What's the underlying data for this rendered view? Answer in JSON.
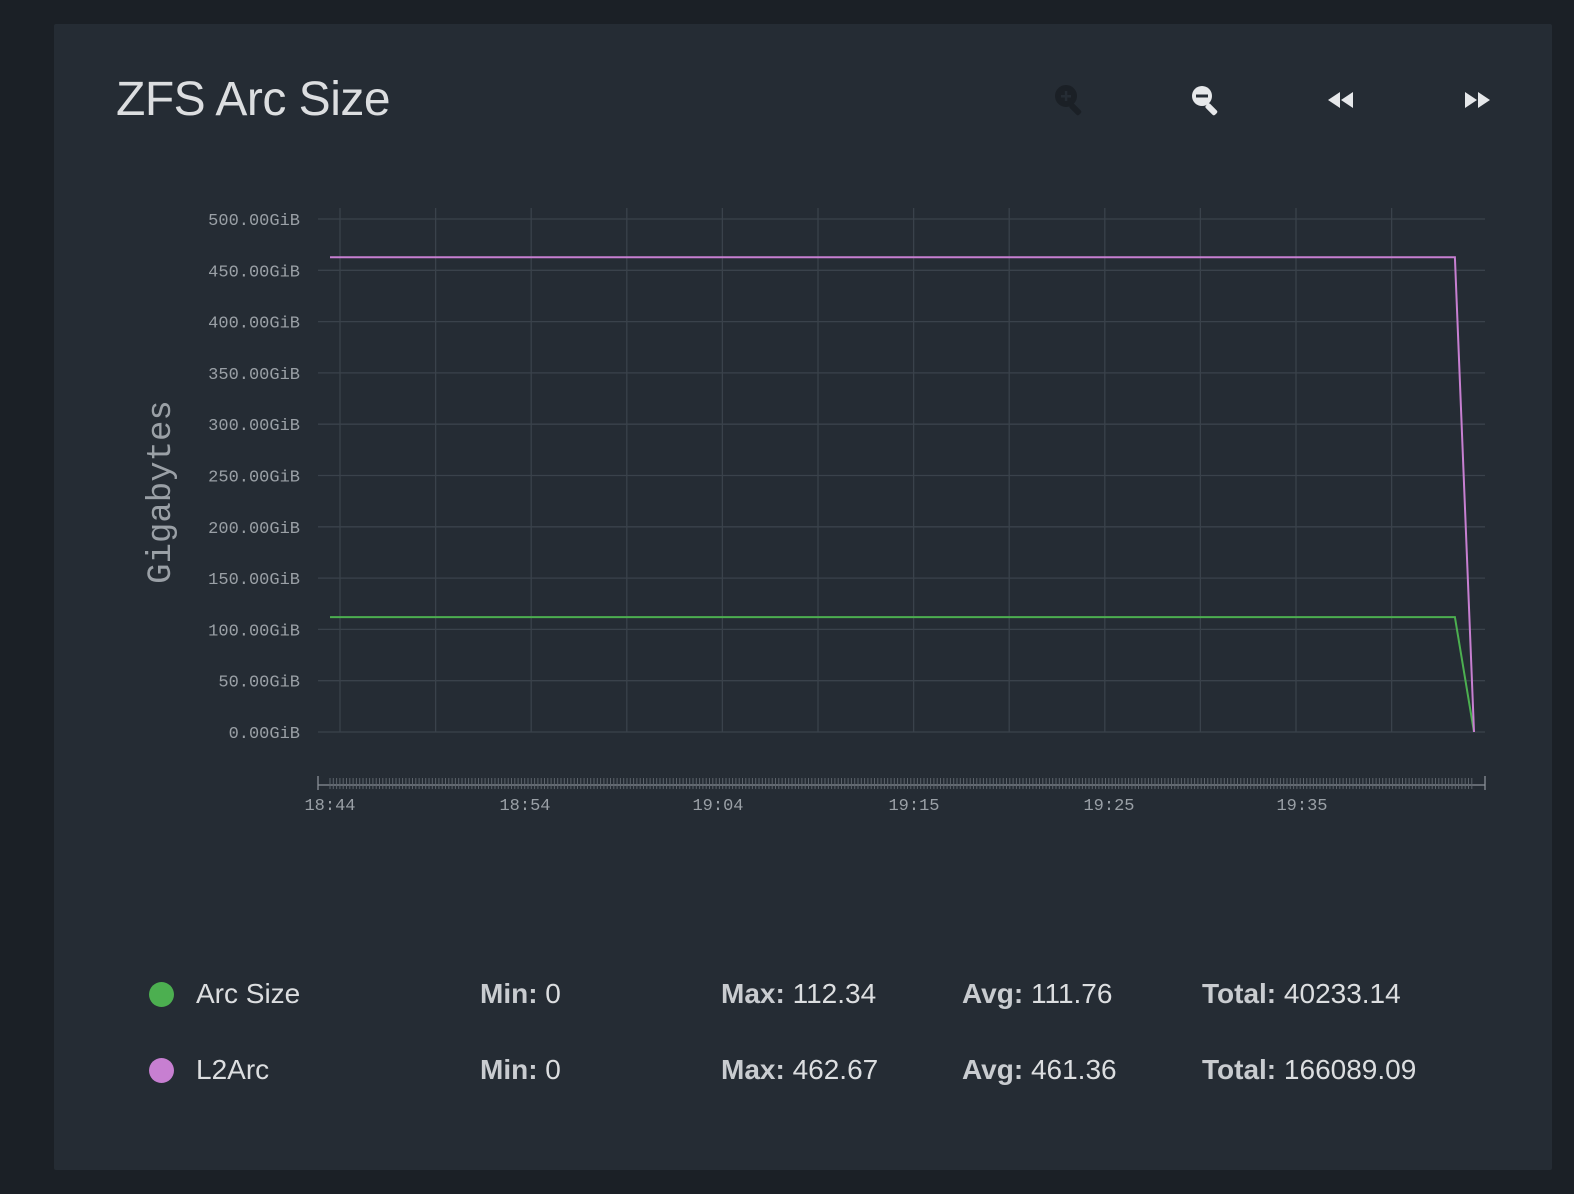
{
  "widget": {
    "title": "ZFS Arc Size",
    "zoom_in_icon": "zoom-in-icon",
    "zoom_out_icon": "zoom-out-icon",
    "back_icon": "rewind-icon",
    "forward_icon": "fast-forward-icon"
  },
  "legend": [
    {
      "name": "Arc Size",
      "color": "#4caf50",
      "min_label": "Min:",
      "min": "0",
      "max_label": "Max:",
      "max": "112.34",
      "avg_label": "Avg:",
      "avg": "111.76",
      "total_label": "Total:",
      "total": "40233.14"
    },
    {
      "name": "L2Arc",
      "color": "#c77fd1",
      "min_label": "Min:",
      "min": "0",
      "max_label": "Max:",
      "max": "462.67",
      "avg_label": "Avg:",
      "avg": "461.36",
      "total_label": "Total:",
      "total": "166089.09"
    }
  ],
  "chart_data": {
    "type": "line",
    "title": "ZFS Arc Size",
    "ylabel": "Gigabytes",
    "xlabel": "",
    "ylim": [
      0,
      500
    ],
    "yticks": [
      "0.00GiB",
      "50.00GiB",
      "100.00GiB",
      "150.00GiB",
      "200.00GiB",
      "250.00GiB",
      "300.00GiB",
      "350.00GiB",
      "400.00GiB",
      "450.00GiB",
      "500.00GiB"
    ],
    "ytick_values": [
      0,
      50,
      100,
      150,
      200,
      250,
      300,
      350,
      400,
      450,
      500
    ],
    "xticks": [
      "18:44",
      "18:54",
      "19:04",
      "19:15",
      "19:25",
      "19:35"
    ],
    "xtick_values": [
      "18:44",
      "18:54",
      "19:04",
      "19:15",
      "19:25",
      "19:35"
    ],
    "xlim": [
      "18:43",
      "19:43"
    ],
    "grid": true,
    "series": [
      {
        "name": "Arc Size",
        "color": "#4caf50",
        "points": [
          [
            "18:43",
            112.0
          ],
          [
            "19:42",
            112.0
          ],
          [
            "19:43",
            0
          ]
        ]
      },
      {
        "name": "L2Arc",
        "color": "#c77fd1",
        "points": [
          [
            "18:43",
            462.67
          ],
          [
            "19:42",
            462.67
          ],
          [
            "19:43",
            0
          ]
        ]
      }
    ]
  }
}
